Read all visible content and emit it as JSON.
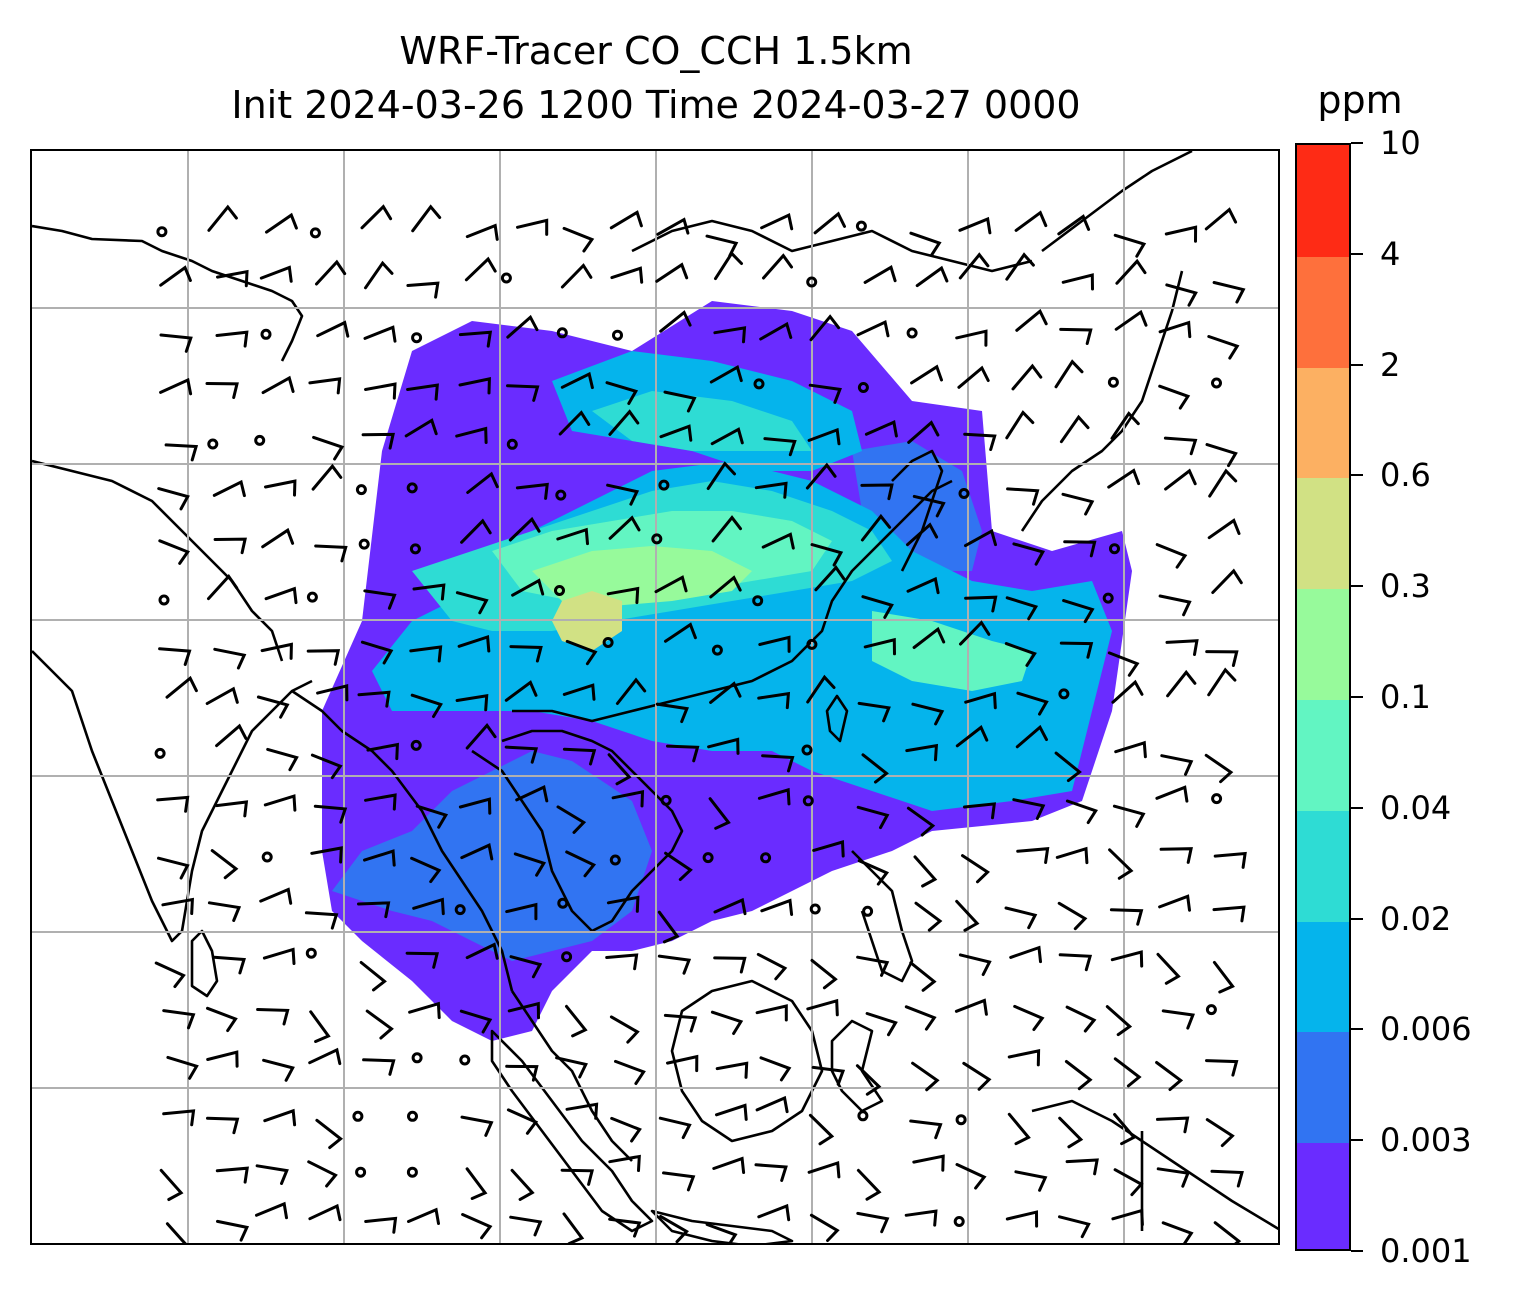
{
  "title": {
    "line1": "WRF-Tracer CO_CCH 1.5km",
    "line2": "Init 2024-03-26 1200 Time 2024-03-27 0000"
  },
  "colorbar": {
    "unit": "ppm",
    "ticks": [
      "0.001",
      "0.003",
      "0.006",
      "0.02",
      "0.04",
      "0.1",
      "0.3",
      "0.6",
      "2",
      "4",
      "10"
    ],
    "colors": [
      "#6a2cff",
      "#3174f2",
      "#05b4ec",
      "#2edcd4",
      "#62f5c2",
      "#97fa9b",
      "#d1e184",
      "#fcb062",
      "#fe703c",
      "#fe2b15"
    ]
  },
  "map": {
    "land_outline_color": "#000000",
    "gridline_color": "#b0b0b0",
    "wind_barb_color": "#000000"
  }
}
